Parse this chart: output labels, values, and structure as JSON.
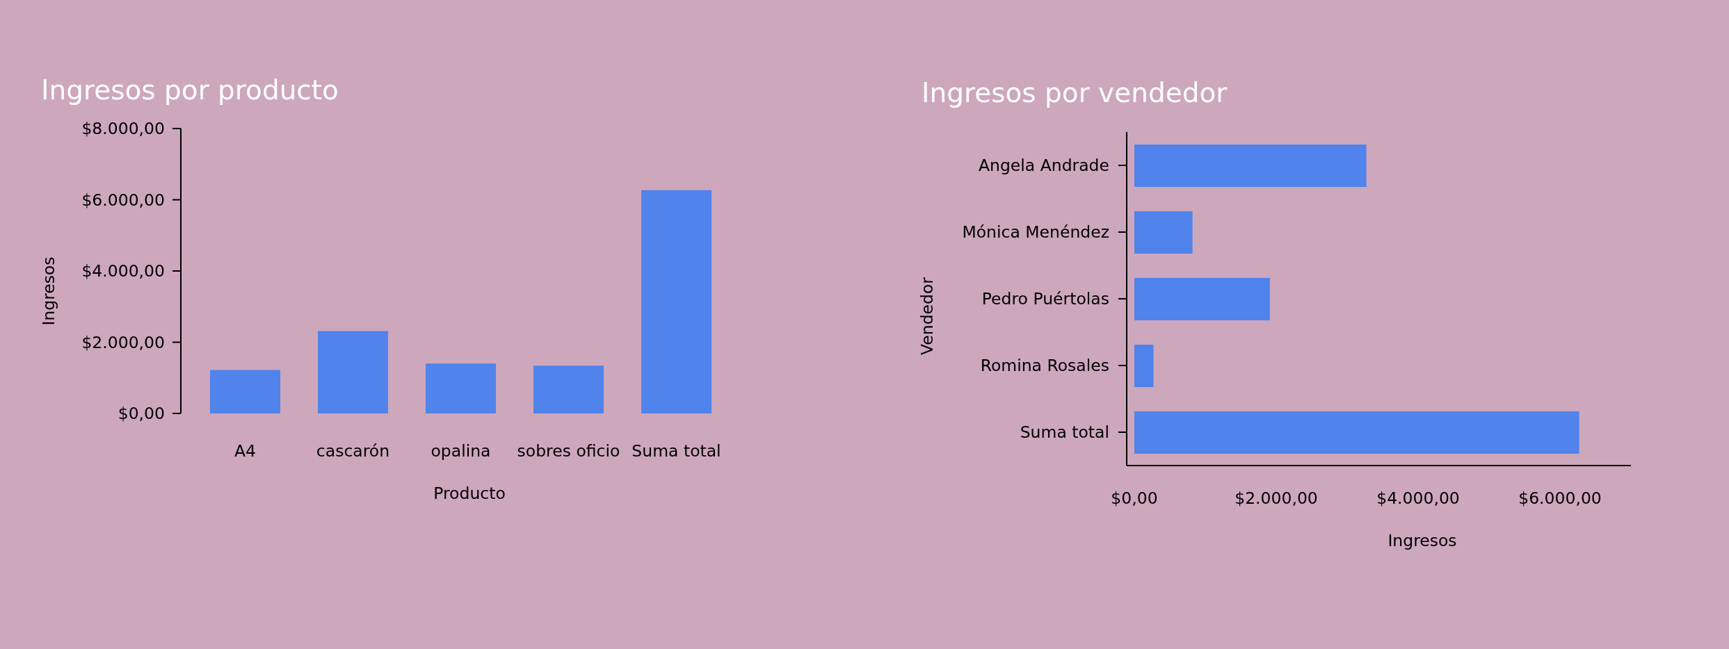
{
  "chart_data": [
    {
      "type": "bar",
      "title": "Ingresos por producto",
      "xlabel": "Producto",
      "ylabel": "Ingresos",
      "categories": [
        "A4",
        "cascarón",
        "opalina",
        "sobres oficio",
        "Suma total"
      ],
      "values": [
        1220,
        2310,
        1400,
        1340,
        6270
      ],
      "color": "#5083eb",
      "ylim": [
        0,
        8000
      ],
      "yticks": [
        {
          "value": 0,
          "label": "$0,00"
        },
        {
          "value": 2000,
          "label": "$2.000,00"
        },
        {
          "value": 4000,
          "label": "$4.000,00"
        },
        {
          "value": 6000,
          "label": "$6.000,00"
        },
        {
          "value": 8000,
          "label": "$8.000,00"
        }
      ]
    },
    {
      "type": "bar",
      "orientation": "horizontal",
      "title": "Ingresos por vendedor",
      "xlabel": "Ingresos",
      "ylabel": "Vendedor",
      "categories": [
        "Angela Andrade",
        "Mónica Menéndez",
        "Pedro Puértolas",
        "Romina Rosales",
        "Suma total"
      ],
      "values": [
        3270,
        820,
        1910,
        270,
        6270
      ],
      "color": "#5083eb",
      "xlim": [
        0,
        7000
      ],
      "xticks": [
        {
          "value": 0,
          "label": "$0,00"
        },
        {
          "value": 2000,
          "label": "$2.000,00"
        },
        {
          "value": 4000,
          "label": "$4.000,00"
        },
        {
          "value": 6000,
          "label": "$6.000,00"
        }
      ]
    }
  ]
}
